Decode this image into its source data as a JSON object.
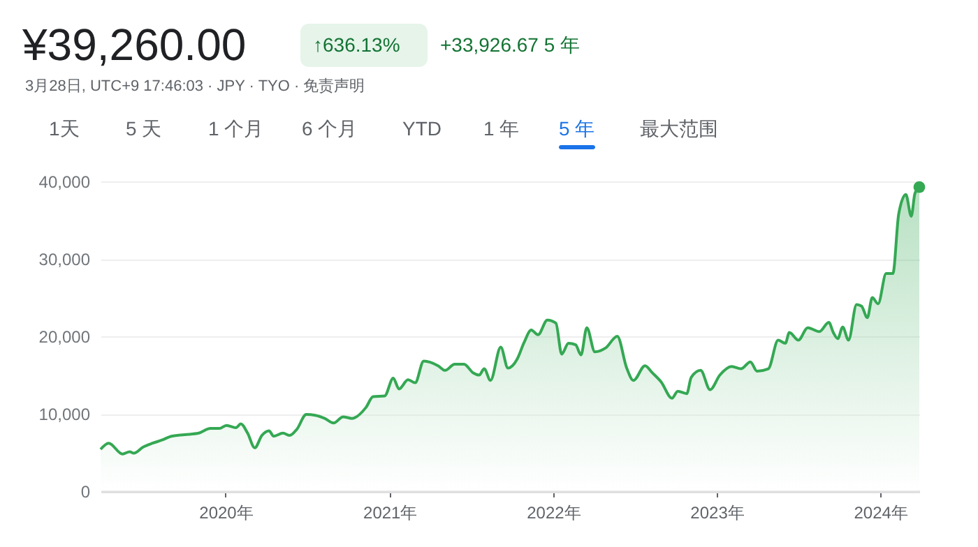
{
  "chart_data": {
    "type": "area",
    "title": "¥39,260.00",
    "subtitle": "3月28日, UTC+9 17:46:03 · JPY · TYO · 免责声明",
    "annotations": [
      "↑636.13%",
      "+33,926.67 5 年",
      "1天",
      "5 天",
      "1 个月",
      "6 个月",
      "YTD",
      "1 年",
      "5 年",
      "最大范围"
    ],
    "xlim": [
      "2019-03-28",
      "2024-03-28"
    ],
    "xticks": [
      {
        "value": "2020-01-01",
        "label": "2020年"
      },
      {
        "value": "2021-01-01",
        "label": "2021年"
      },
      {
        "value": "2022-01-01",
        "label": "2022年"
      },
      {
        "value": "2023-01-01",
        "label": "2023年"
      },
      {
        "value": "2024-01-01",
        "label": "2024年"
      }
    ],
    "ylim": [
      0,
      40000
    ],
    "yticks": [
      {
        "value": 0,
        "label": "0"
      },
      {
        "value": 10000,
        "label": "10,000"
      },
      {
        "value": 20000,
        "label": "20,000"
      },
      {
        "value": 30000,
        "label": "30,000"
      },
      {
        "value": 40000,
        "label": "40,000"
      }
    ],
    "grid": "y",
    "series": [
      {
        "color": "#34a853",
        "x": [
          "2019-03-28",
          "2019-04-15",
          "2019-05-16",
          "2019-06-01",
          "2019-06-10",
          "2019-07-01",
          "2019-07-22",
          "2019-08-12",
          "2019-09-02",
          "2019-10-02",
          "2019-11-02",
          "2019-11-28",
          "2019-12-18",
          "2020-01-03",
          "2020-01-24",
          "2020-02-04",
          "2020-02-19",
          "2020-03-06",
          "2020-03-22",
          "2020-04-07",
          "2020-04-17",
          "2020-05-08",
          "2020-05-23",
          "2020-06-08",
          "2020-06-29",
          "2020-07-19",
          "2020-08-09",
          "2020-08-29",
          "2020-09-19",
          "2020-10-09",
          "2020-11-09",
          "2020-11-25",
          "2020-12-21",
          "2021-01-09",
          "2021-01-22",
          "2021-02-11",
          "2021-02-27",
          "2021-03-18",
          "2021-04-19",
          "2021-05-05",
          "2021-05-26",
          "2021-06-16",
          "2021-07-06",
          "2021-07-20",
          "2021-07-31",
          "2021-08-14",
          "2021-09-06",
          "2021-09-22",
          "2021-10-13",
          "2021-10-28",
          "2021-11-13",
          "2021-11-28",
          "2021-12-19",
          "2022-01-07",
          "2022-01-20",
          "2022-02-04",
          "2022-02-20",
          "2022-03-04",
          "2022-03-17",
          "2022-04-04",
          "2022-04-28",
          "2022-05-24",
          "2022-06-14",
          "2022-06-29",
          "2022-07-25",
          "2022-08-10",
          "2022-08-30",
          "2022-09-23",
          "2022-10-06",
          "2022-10-26",
          "2022-11-05",
          "2022-11-26",
          "2022-12-17",
          "2023-01-08",
          "2023-02-03",
          "2023-02-24",
          "2023-03-17",
          "2023-04-01",
          "2023-04-26",
          "2023-05-18",
          "2023-06-03",
          "2023-06-12",
          "2023-07-02",
          "2023-07-23",
          "2023-08-18",
          "2023-09-08",
          "2023-09-18",
          "2023-09-28",
          "2023-10-09",
          "2023-10-22",
          "2023-11-09",
          "2023-11-20",
          "2023-12-03",
          "2023-12-14",
          "2023-12-27",
          "2024-01-14",
          "2024-01-29",
          "2024-02-11",
          "2024-02-27",
          "2024-03-10",
          "2024-03-18",
          "2024-03-28"
        ],
        "values": [
          5400,
          6200,
          4800,
          5100,
          4900,
          5700,
          6200,
          6600,
          7100,
          7300,
          7500,
          8100,
          8100,
          8500,
          8200,
          8700,
          7500,
          5600,
          7200,
          7800,
          7100,
          7500,
          7200,
          8000,
          9900,
          9800,
          9400,
          8800,
          9600,
          9400,
          10800,
          12200,
          12300,
          14600,
          13200,
          14400,
          14000,
          16800,
          16200,
          15600,
          16400,
          16400,
          15300,
          15000,
          15800,
          14300,
          18600,
          15900,
          17100,
          19200,
          20800,
          20200,
          22100,
          21700,
          17700,
          19100,
          18900,
          17600,
          21100,
          18000,
          18500,
          20000,
          15900,
          14300,
          16200,
          15300,
          14100,
          12000,
          12900,
          12600,
          14700,
          15600,
          13100,
          15000,
          16100,
          15800,
          16700,
          15500,
          15800,
          19500,
          19100,
          20500,
          19500,
          21100,
          20600,
          21800,
          20500,
          19700,
          21200,
          19500,
          24100,
          23900,
          22400,
          25000,
          24200,
          28100,
          28100,
          35800,
          38300,
          35500,
          38400,
          39260
        ]
      },
      {
        "type": "scatter",
        "color": "#34a853",
        "x": [
          "2024-03-28"
        ],
        "values": [
          39260
        ]
      }
    ]
  }
}
